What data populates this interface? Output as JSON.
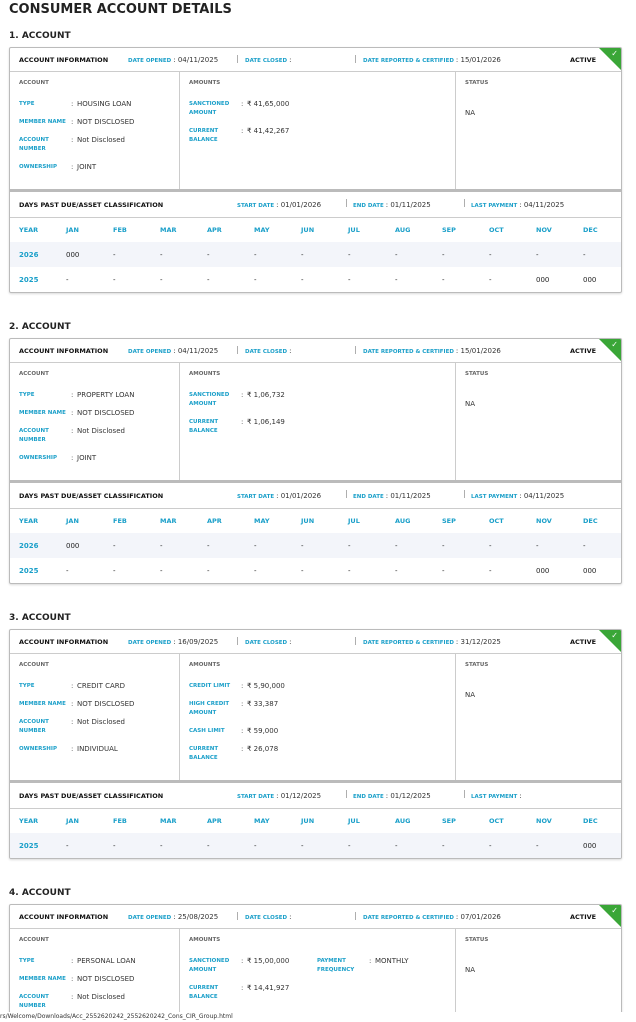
{
  "page_title": "CONSUMER ACCOUNT DETAILS",
  "labels": {
    "account_information": "ACCOUNT INFORMATION",
    "date_opened": "DATE OPENED",
    "date_closed": "DATE CLOSED",
    "date_reported": "DATE REPORTED & CERTIFIED",
    "account": "ACCOUNT",
    "amounts": "AMOUNTS",
    "status": "STATUS",
    "type": "TYPE",
    "member_name": "MEMBER NAME",
    "account_number": "ACCOUNT NUMBER",
    "ownership": "OWNERSHIP",
    "dpd": "DAYS PAST DUE/ASSET CLASSIFICATION",
    "start_date": "START DATE",
    "end_date": "END DATE",
    "last_payment": "LAST PAYMENT",
    "year": "YEAR",
    "months": [
      "JAN",
      "FEB",
      "MAR",
      "APR",
      "MAY",
      "JUN",
      "JUL",
      "AUG",
      "SEP",
      "OCT",
      "NOV",
      "DEC"
    ]
  },
  "status_color": "#3aa637",
  "accent_color": "#1a9fc9",
  "active_icon": "check-icon",
  "accounts": [
    {
      "heading": "1. ACCOUNT",
      "date_opened": "04/11/2025",
      "date_closed": "",
      "date_reported": "15/01/2026",
      "state": "ACTIVE",
      "type": "HOUSING LOAN",
      "member_name": "NOT DISCLOSED",
      "account_number": "Not Disclosed",
      "ownership": "JOINT",
      "amounts": [
        {
          "label": "SANCTIONED AMOUNT",
          "value": "₹ 41,65,000"
        },
        {
          "label": "CURRENT BALANCE",
          "value": "₹ 41,42,267"
        }
      ],
      "status": "NA",
      "start_date": "01/01/2026",
      "end_date": "01/11/2025",
      "last_payment": "04/11/2025",
      "dpd_rows": [
        {
          "year": "2026",
          "values": [
            "000",
            "-",
            "-",
            "-",
            "-",
            "-",
            "-",
            "-",
            "-",
            "-",
            "-",
            "-"
          ]
        },
        {
          "year": "2025",
          "values": [
            "-",
            "-",
            "-",
            "-",
            "-",
            "-",
            "-",
            "-",
            "-",
            "-",
            "000",
            "000"
          ]
        }
      ]
    },
    {
      "heading": "2. ACCOUNT",
      "date_opened": "04/11/2025",
      "date_closed": "",
      "date_reported": "15/01/2026",
      "state": "ACTIVE",
      "type": "PROPERTY LOAN",
      "member_name": "NOT DISCLOSED",
      "account_number": "Not Disclosed",
      "ownership": "JOINT",
      "amounts": [
        {
          "label": "SANCTIONED AMOUNT",
          "value": "₹ 1,06,732"
        },
        {
          "label": "CURRENT BALANCE",
          "value": "₹ 1,06,149"
        }
      ],
      "status": "NA",
      "start_date": "01/01/2026",
      "end_date": "01/11/2025",
      "last_payment": "04/11/2025",
      "dpd_rows": [
        {
          "year": "2026",
          "values": [
            "000",
            "-",
            "-",
            "-",
            "-",
            "-",
            "-",
            "-",
            "-",
            "-",
            "-",
            "-"
          ]
        },
        {
          "year": "2025",
          "values": [
            "-",
            "-",
            "-",
            "-",
            "-",
            "-",
            "-",
            "-",
            "-",
            "-",
            "000",
            "000"
          ]
        }
      ]
    },
    {
      "heading": "3. ACCOUNT",
      "date_opened": "16/09/2025",
      "date_closed": "",
      "date_reported": "31/12/2025",
      "state": "ACTIVE",
      "type": "CREDIT CARD",
      "member_name": "NOT DISCLOSED",
      "account_number": "Not Disclosed",
      "ownership": "INDIVIDUAL",
      "amounts": [
        {
          "label": "CREDIT LIMIT",
          "value": "₹ 5,90,000"
        },
        {
          "label": "HIGH CREDIT AMOUNT",
          "value": "₹ 33,387"
        },
        {
          "label": "CASH LIMIT",
          "value": "₹ 59,000"
        },
        {
          "label": "CURRENT BALANCE",
          "value": "₹ 26,078"
        }
      ],
      "status": "NA",
      "start_date": "01/12/2025",
      "end_date": "01/12/2025",
      "last_payment": "",
      "dpd_rows": [
        {
          "year": "2025",
          "values": [
            "-",
            "-",
            "-",
            "-",
            "-",
            "-",
            "-",
            "-",
            "-",
            "-",
            "-",
            "000"
          ]
        }
      ]
    },
    {
      "heading": "4. ACCOUNT",
      "date_opened": "25/08/2025",
      "date_closed": "",
      "date_reported": "07/01/2026",
      "state": "ACTIVE",
      "type": "PERSONAL LOAN",
      "member_name": "NOT DISCLOSED",
      "account_number": "Not Disclosed",
      "ownership": "",
      "amounts": [
        {
          "label": "SANCTIONED AMOUNT",
          "value": "₹ 15,00,000"
        },
        {
          "label": "PAYMENT FREQUENCY",
          "value": "MONTHLY"
        },
        {
          "label": "CURRENT BALANCE",
          "value": "₹ 14,41,927"
        }
      ],
      "status": "NA"
    }
  ],
  "footer_path": "rs/Welcome/Downloads/Acc_2552620242_2552620242_Cons_CIR_Group.html"
}
